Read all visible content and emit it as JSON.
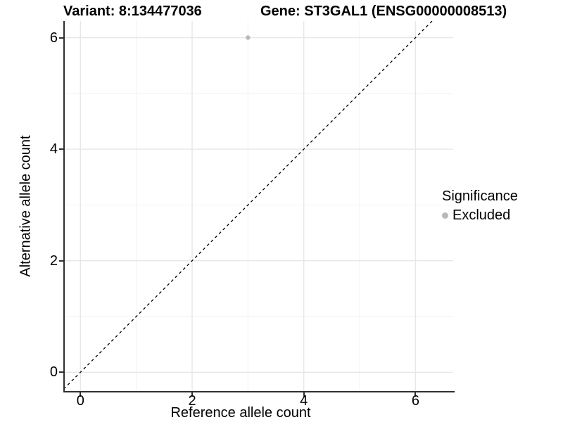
{
  "header": {
    "variant_title": "Variant: 8:134477036",
    "gene_title": "Gene: ST3GAL1 (ENSG00000008513)"
  },
  "legend": {
    "title": "Significance",
    "items": [
      {
        "label": "Excluded",
        "color": "#b9b9b9"
      }
    ]
  },
  "chart_data": {
    "type": "scatter",
    "title": "Variant: 8:134477036   Gene: ST3GAL1 (ENSG00000008513)",
    "xlabel": "Reference allele count",
    "ylabel": "Alternative allele count",
    "xlim": [
      -0.3,
      6.7
    ],
    "ylim": [
      -0.35,
      6.3
    ],
    "xticks": [
      0,
      2,
      4,
      6
    ],
    "yticks": [
      0,
      2,
      4,
      6
    ],
    "minor_xticks": [
      1,
      3,
      5
    ],
    "minor_yticks": [
      1,
      3,
      5
    ],
    "grid": true,
    "legend_position": "right",
    "legend_title": "Significance",
    "series": [
      {
        "name": "Excluded",
        "color": "#b9b9b9",
        "marker": "circle",
        "marker_radius_px": 3.2,
        "points": [
          {
            "x": 3,
            "y": 6
          }
        ]
      }
    ],
    "reference_line": {
      "type": "abline",
      "slope": 1,
      "intercept": 0,
      "style": "dashed",
      "color": "#000000"
    },
    "style": {
      "grid_major_color": "#e7e7e7",
      "grid_minor_color": "#f2f2f2",
      "axis_line_color": "#2f2f2f",
      "background": "#ffffff"
    }
  }
}
